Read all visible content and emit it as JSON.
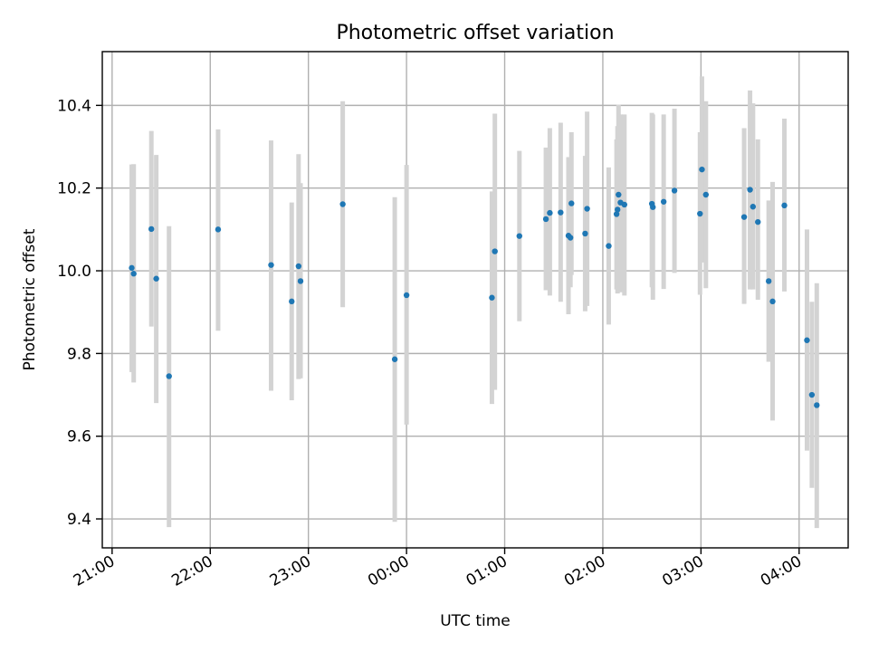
{
  "chart_data": {
    "type": "scatter",
    "title": "Photometric offset variation",
    "xlabel": "UTC time",
    "ylabel": "Photometric offset",
    "x_unit": "hours",
    "xlim": [
      -3.1,
      4.5
    ],
    "ylim": [
      9.33,
      10.53
    ],
    "x_ticks": [
      {
        "value": -3,
        "label": "21:00"
      },
      {
        "value": -2,
        "label": "22:00"
      },
      {
        "value": -1,
        "label": "23:00"
      },
      {
        "value": 0,
        "label": "00:00"
      },
      {
        "value": 1,
        "label": "01:00"
      },
      {
        "value": 2,
        "label": "02:00"
      },
      {
        "value": 3,
        "label": "03:00"
      },
      {
        "value": 4,
        "label": "04:00"
      }
    ],
    "y_ticks": [
      {
        "value": 9.4,
        "label": "9.4"
      },
      {
        "value": 9.6,
        "label": "9.6"
      },
      {
        "value": 9.8,
        "label": "9.8"
      },
      {
        "value": 10.0,
        "label": "10.0"
      },
      {
        "value": 10.2,
        "label": "10.2"
      },
      {
        "value": 10.4,
        "label": "10.4"
      }
    ],
    "grid": true,
    "colors": {
      "point": "#1f77b4",
      "errorbar": "#d3d3d3"
    },
    "points": [
      {
        "x": -2.8,
        "y": 10.007,
        "low": 9.755,
        "high": 10.257
      },
      {
        "x": -2.78,
        "y": 9.993,
        "low": 9.73,
        "high": 10.258
      },
      {
        "x": -2.6,
        "y": 10.101,
        "low": 9.865,
        "high": 10.338
      },
      {
        "x": -2.55,
        "y": 9.981,
        "low": 9.68,
        "high": 10.28
      },
      {
        "x": -2.42,
        "y": 9.745,
        "low": 9.38,
        "high": 10.108
      },
      {
        "x": -1.92,
        "y": 10.1,
        "low": 9.855,
        "high": 10.342
      },
      {
        "x": -1.38,
        "y": 10.014,
        "low": 9.71,
        "high": 10.315
      },
      {
        "x": -1.17,
        "y": 9.926,
        "low": 9.687,
        "high": 10.165
      },
      {
        "x": -1.1,
        "y": 10.011,
        "low": 9.738,
        "high": 10.282
      },
      {
        "x": -1.08,
        "y": 9.975,
        "low": 9.74,
        "high": 10.212
      },
      {
        "x": -0.65,
        "y": 10.161,
        "low": 9.912,
        "high": 10.41
      },
      {
        "x": -0.12,
        "y": 9.786,
        "low": 9.393,
        "high": 10.178
      },
      {
        "x": 0.0,
        "y": 9.941,
        "low": 9.628,
        "high": 10.256
      },
      {
        "x": 0.87,
        "y": 9.935,
        "low": 9.678,
        "high": 10.192
      },
      {
        "x": 0.9,
        "y": 10.047,
        "low": 9.712,
        "high": 10.38
      },
      {
        "x": 1.15,
        "y": 10.084,
        "low": 9.878,
        "high": 10.29
      },
      {
        "x": 1.42,
        "y": 10.125,
        "low": 9.953,
        "high": 10.298
      },
      {
        "x": 1.46,
        "y": 10.14,
        "low": 9.94,
        "high": 10.345
      },
      {
        "x": 1.57,
        "y": 10.141,
        "low": 9.925,
        "high": 10.358
      },
      {
        "x": 1.65,
        "y": 10.085,
        "low": 9.895,
        "high": 10.275
      },
      {
        "x": 1.67,
        "y": 10.08,
        "low": 9.96,
        "high": 10.2
      },
      {
        "x": 1.68,
        "y": 10.163,
        "low": 9.99,
        "high": 10.335
      },
      {
        "x": 1.82,
        "y": 10.09,
        "low": 9.902,
        "high": 10.278
      },
      {
        "x": 1.84,
        "y": 10.15,
        "low": 9.915,
        "high": 10.385
      },
      {
        "x": 2.06,
        "y": 10.06,
        "low": 9.87,
        "high": 10.25
      },
      {
        "x": 2.14,
        "y": 10.137,
        "low": 9.955,
        "high": 10.318
      },
      {
        "x": 2.15,
        "y": 10.148,
        "low": 9.945,
        "high": 10.35
      },
      {
        "x": 2.16,
        "y": 10.184,
        "low": 9.965,
        "high": 10.402
      },
      {
        "x": 2.18,
        "y": 10.165,
        "low": 9.948,
        "high": 10.378
      },
      {
        "x": 2.22,
        "y": 10.16,
        "low": 9.94,
        "high": 10.378
      },
      {
        "x": 2.5,
        "y": 10.162,
        "low": 9.96,
        "high": 10.382
      },
      {
        "x": 2.51,
        "y": 10.154,
        "low": 9.93,
        "high": 10.378
      },
      {
        "x": 2.62,
        "y": 10.167,
        "low": 9.956,
        "high": 10.378
      },
      {
        "x": 2.73,
        "y": 10.194,
        "low": 9.995,
        "high": 10.392
      },
      {
        "x": 2.99,
        "y": 10.138,
        "low": 9.942,
        "high": 10.335
      },
      {
        "x": 3.01,
        "y": 10.245,
        "low": 10.02,
        "high": 10.47
      },
      {
        "x": 3.05,
        "y": 10.184,
        "low": 9.958,
        "high": 10.41
      },
      {
        "x": 3.44,
        "y": 10.13,
        "low": 9.92,
        "high": 10.345
      },
      {
        "x": 3.5,
        "y": 10.196,
        "low": 9.955,
        "high": 10.436
      },
      {
        "x": 3.53,
        "y": 10.155,
        "low": 9.955,
        "high": 10.405
      },
      {
        "x": 3.58,
        "y": 10.118,
        "low": 9.93,
        "high": 10.318
      },
      {
        "x": 3.69,
        "y": 9.975,
        "low": 9.78,
        "high": 10.17
      },
      {
        "x": 3.73,
        "y": 9.926,
        "low": 9.638,
        "high": 10.215
      },
      {
        "x": 3.85,
        "y": 10.158,
        "low": 9.95,
        "high": 10.368
      },
      {
        "x": 4.08,
        "y": 9.832,
        "low": 9.565,
        "high": 10.1
      },
      {
        "x": 4.13,
        "y": 9.7,
        "low": 9.475,
        "high": 9.925
      },
      {
        "x": 4.18,
        "y": 9.675,
        "low": 9.378,
        "high": 9.97
      }
    ]
  }
}
